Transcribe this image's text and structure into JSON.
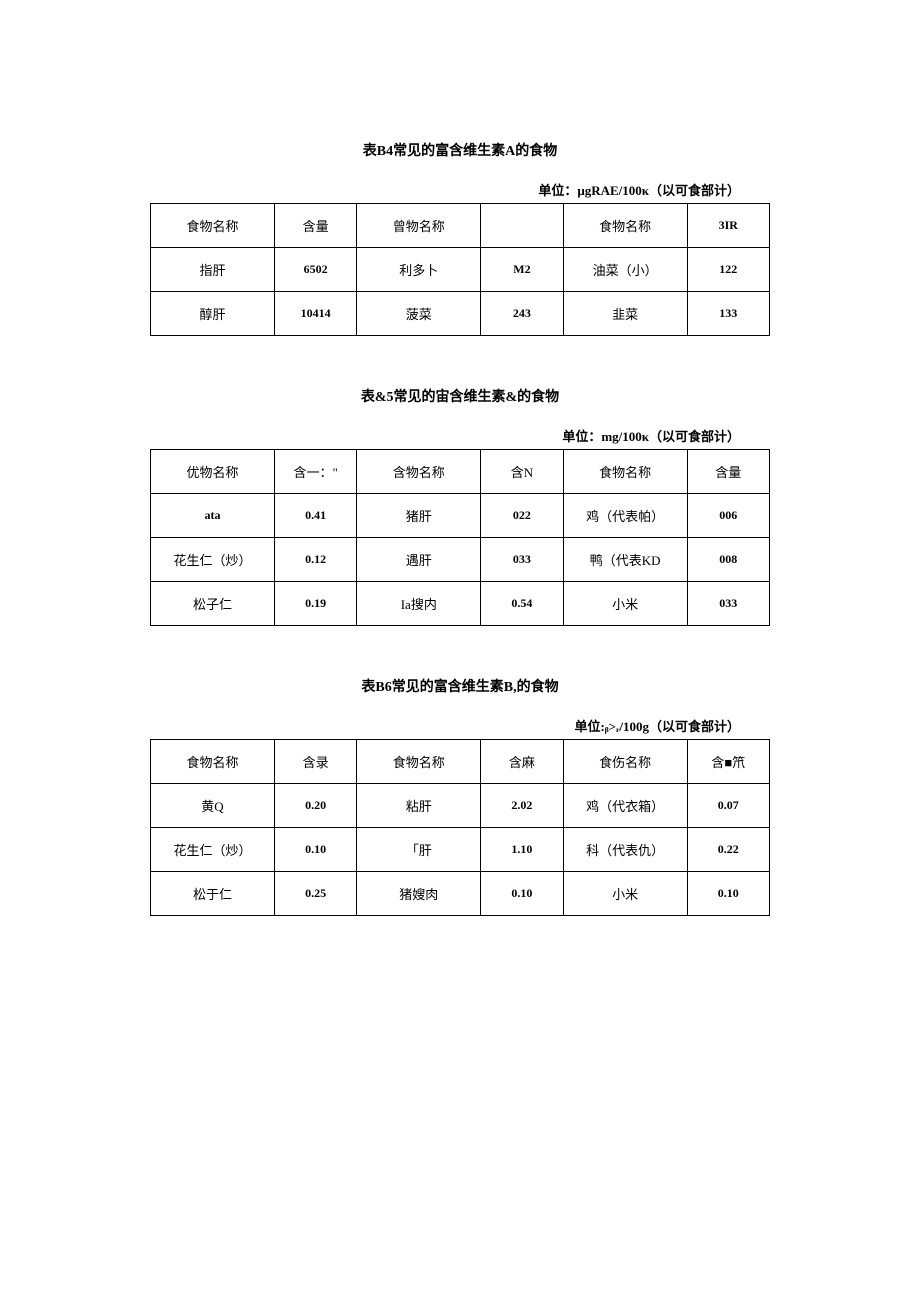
{
  "tables": [
    {
      "title": "表B4常见的富含维生素A的食物",
      "unit": "单位：μgRAE/100κ（以可食部计）",
      "header": [
        "食物名称",
        "含量",
        "曾物名称",
        "",
        "食物名称",
        "3IR"
      ],
      "rows": [
        [
          "指肝",
          "6502",
          "利多卜",
          "M2",
          "油菜（小）",
          "122"
        ],
        [
          "醇肝",
          "10414",
          "菠菜",
          "243",
          "韭菜",
          "133"
        ]
      ]
    },
    {
      "title": "表&5常见的宙含维生素&的食物",
      "unit": "单位：mg/100κ（以可食部计）",
      "header": [
        "优物名称",
        "含一：\"",
        "含物名称",
        "含N",
        "食物名称",
        "含量"
      ],
      "rows": [
        [
          "ata",
          "0.41",
          "猪肝",
          "022",
          "鸡（代表帕）",
          "006"
        ],
        [
          "花生仁（炒）",
          "0.12",
          "遇肝",
          "033",
          "鸭（代表KD",
          "008"
        ],
        [
          "松子仁",
          "0.19",
          "Ia搜内",
          "0.54",
          "小米",
          "033"
        ]
      ]
    },
    {
      "title": "表B6常见的富含维生素B,的食物",
      "unit": "单位:ᵦ>ᵣ/100g（以可食部计）",
      "header": [
        "食物名称",
        "含录",
        "食物名称",
        "含麻",
        "食伤名称",
        "含■笊"
      ],
      "rows": [
        [
          "黄Q",
          "0.20",
          "粘肝",
          "2.02",
          "鸡（代衣箱）",
          "0.07"
        ],
        [
          "花生仁（炒）",
          "0.10",
          "「肝",
          "1.10",
          "科（代表仇）",
          "0.22"
        ],
        [
          "松于仁",
          "0.25",
          "猪嫂肉",
          "0.10",
          "小米",
          "0.10"
        ]
      ]
    }
  ]
}
